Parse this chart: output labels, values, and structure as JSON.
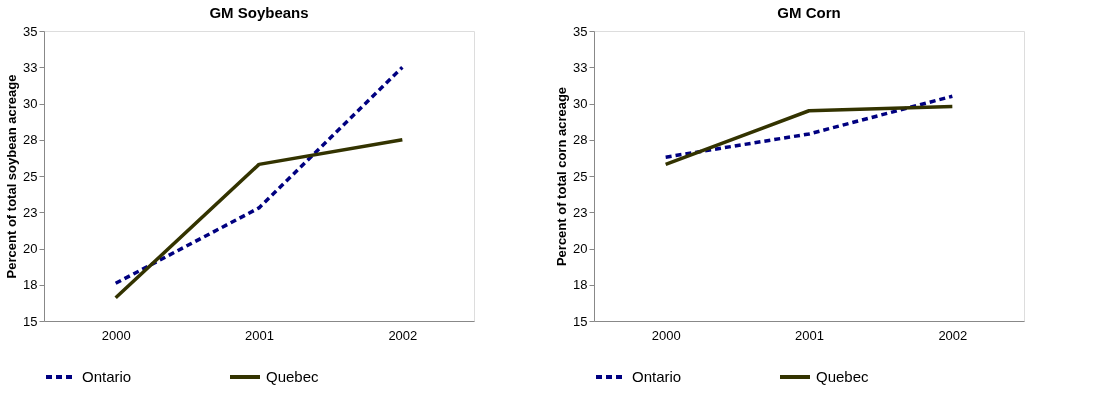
{
  "chart_data": [
    {
      "type": "line",
      "title": "GM Soybeans",
      "ylabel": "Percent of total soybean acreage",
      "categories": [
        "2000",
        "2001",
        "2002"
      ],
      "ylim": [
        15,
        35
      ],
      "yticks": [
        15,
        {
          "value": 17.5,
          "label": "18"
        },
        20,
        {
          "value": 22.5,
          "label": "23"
        },
        25,
        {
          "value": 27.5,
          "label": "28"
        },
        30,
        {
          "value": 32.5,
          "label": "33"
        },
        35
      ],
      "grid": false,
      "legend": "bottom",
      "marker": "none",
      "series": [
        {
          "name": "Ontario",
          "color": "#000080",
          "line_style": "dashed",
          "values": [
            17.6,
            22.8,
            32.5
          ]
        },
        {
          "name": "Quebec",
          "color": "#333300",
          "line_style": "solid",
          "values": [
            16.6,
            25.8,
            27.5
          ]
        }
      ]
    },
    {
      "type": "line",
      "title": "GM Corn",
      "ylabel": "Percent of total corn acreage",
      "categories": [
        "2000",
        "2001",
        "2002"
      ],
      "ylim": [
        15,
        35
      ],
      "yticks": [
        15,
        {
          "value": 17.5,
          "label": "18"
        },
        20,
        {
          "value": 22.5,
          "label": "23"
        },
        25,
        {
          "value": 27.5,
          "label": "28"
        },
        30,
        {
          "value": 32.5,
          "label": "33"
        },
        35
      ],
      "grid": false,
      "legend": "bottom",
      "marker": "none",
      "series": [
        {
          "name": "Ontario",
          "color": "#000080",
          "line_style": "dashed",
          "values": [
            26.3,
            27.9,
            30.5
          ]
        },
        {
          "name": "Quebec",
          "color": "#333300",
          "line_style": "solid",
          "values": [
            25.8,
            29.5,
            29.8
          ]
        }
      ]
    }
  ]
}
